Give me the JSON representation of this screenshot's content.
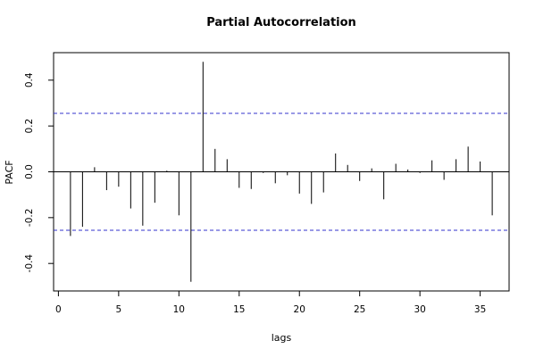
{
  "chart_data": {
    "type": "bar",
    "title": "Partial Autocorrelation",
    "xlabel": "lags",
    "ylabel": "PACF",
    "xlim": [
      -0.4,
      37.4
    ],
    "ylim": [
      -0.52,
      0.52
    ],
    "x_ticks": [
      0,
      5,
      10,
      15,
      20,
      25,
      30,
      35
    ],
    "y_ticks": [
      -0.4,
      -0.2,
      0.0,
      0.2,
      0.4
    ],
    "y_tick_labels": [
      "-0.4",
      "-0.2",
      "0.0",
      "0.2",
      "0.4"
    ],
    "confidence_bound": 0.255,
    "series": [
      {
        "lags": [
          1,
          2,
          3,
          4,
          5,
          6,
          7,
          8,
          9,
          10,
          11,
          12,
          13,
          14,
          15,
          16,
          17,
          18,
          19,
          20,
          21,
          22,
          23,
          24,
          25,
          26,
          27,
          28,
          29,
          30,
          31,
          32,
          33,
          34,
          35,
          36
        ],
        "values": [
          -0.28,
          -0.24,
          0.02,
          -0.08,
          -0.065,
          -0.16,
          -0.235,
          -0.135,
          0.005,
          -0.19,
          -0.48,
          0.48,
          0.1,
          0.055,
          -0.07,
          -0.075,
          -0.005,
          -0.05,
          -0.015,
          -0.095,
          -0.14,
          -0.09,
          0.08,
          0.03,
          -0.04,
          0.015,
          -0.12,
          0.035,
          0.01,
          -0.005,
          0.05,
          -0.035,
          0.055,
          0.11,
          0.045,
          -0.19
        ]
      }
    ],
    "colors": {
      "bars": "#000000",
      "bounds": "#3333cc",
      "zero_line": "#000000",
      "frame": "#000000"
    },
    "grid": false
  }
}
